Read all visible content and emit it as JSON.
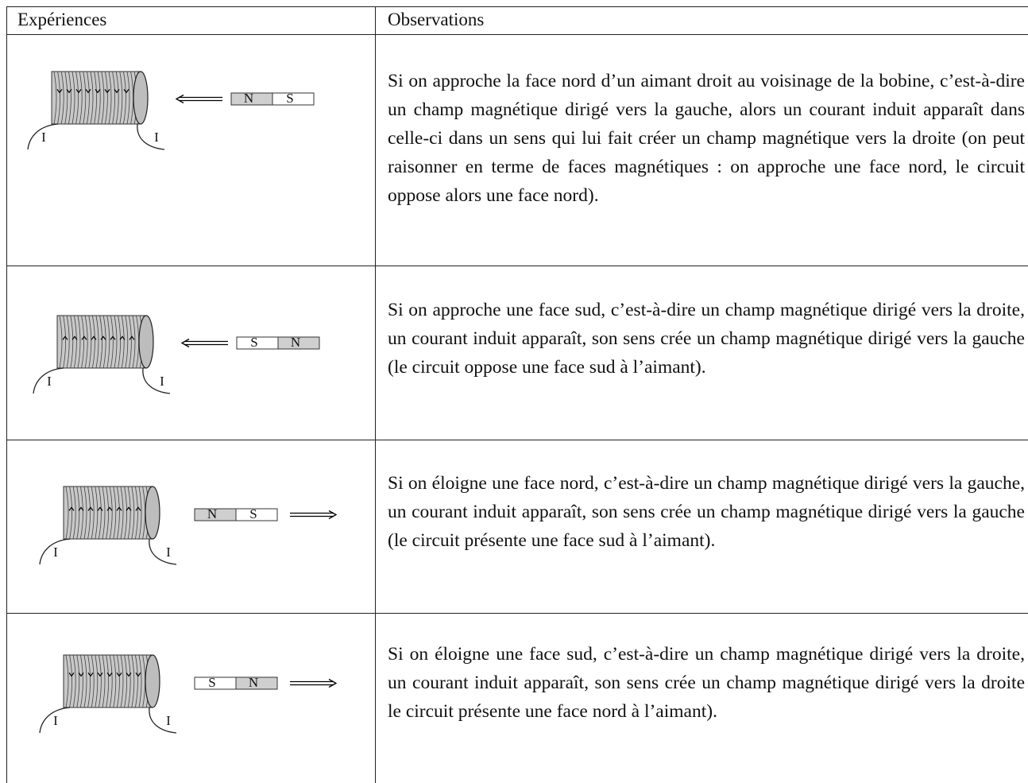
{
  "table": {
    "header": [
      "Expériences",
      "Observations"
    ],
    "rows": [
      {
        "magnet": [
          "N",
          "S"
        ],
        "current": [
          "I",
          "I"
        ],
        "observation": "Si on approche la face nord d’un aimant droit au voisinage de la bobine, c’est-à-dire un champ magnétique dirigé vers la gauche, alors un courant induit apparaît dans celle-ci dans un sens qui lui fait créer un champ magnétique vers la droite (on peut raisonner en terme de faces magnétiques : on approche une face nord, le circuit oppose alors une face nord)."
      },
      {
        "magnet": [
          "S",
          "N"
        ],
        "current": [
          "I",
          "I"
        ],
        "observation": "Si on approche une face sud, c’est-à-dire un champ magnétique dirigé vers la droite, un courant induit apparaît, son sens crée un champ magnétique dirigé vers la gauche (le circuit oppose une face sud à l’aimant)."
      },
      {
        "magnet": [
          "N",
          "S"
        ],
        "current": [
          "I",
          "I"
        ],
        "observation": "Si on éloigne une face nord, c’est-à-dire un champ magnétique dirigé vers la gauche, un courant induit apparaît, son sens crée un champ magnétique dirigé vers la gauche (le circuit présente une face sud à l’aimant)."
      },
      {
        "magnet": [
          "S",
          "N"
        ],
        "current": [
          "I",
          "I"
        ],
        "observation": "Si on éloigne une face sud, c’est-à-dire un champ magnétique dirigé vers la droite, un courant induit apparaît, son sens crée un champ magnétique dirigé vers la droite le circuit présente une face nord à l’aimant)."
      }
    ]
  }
}
